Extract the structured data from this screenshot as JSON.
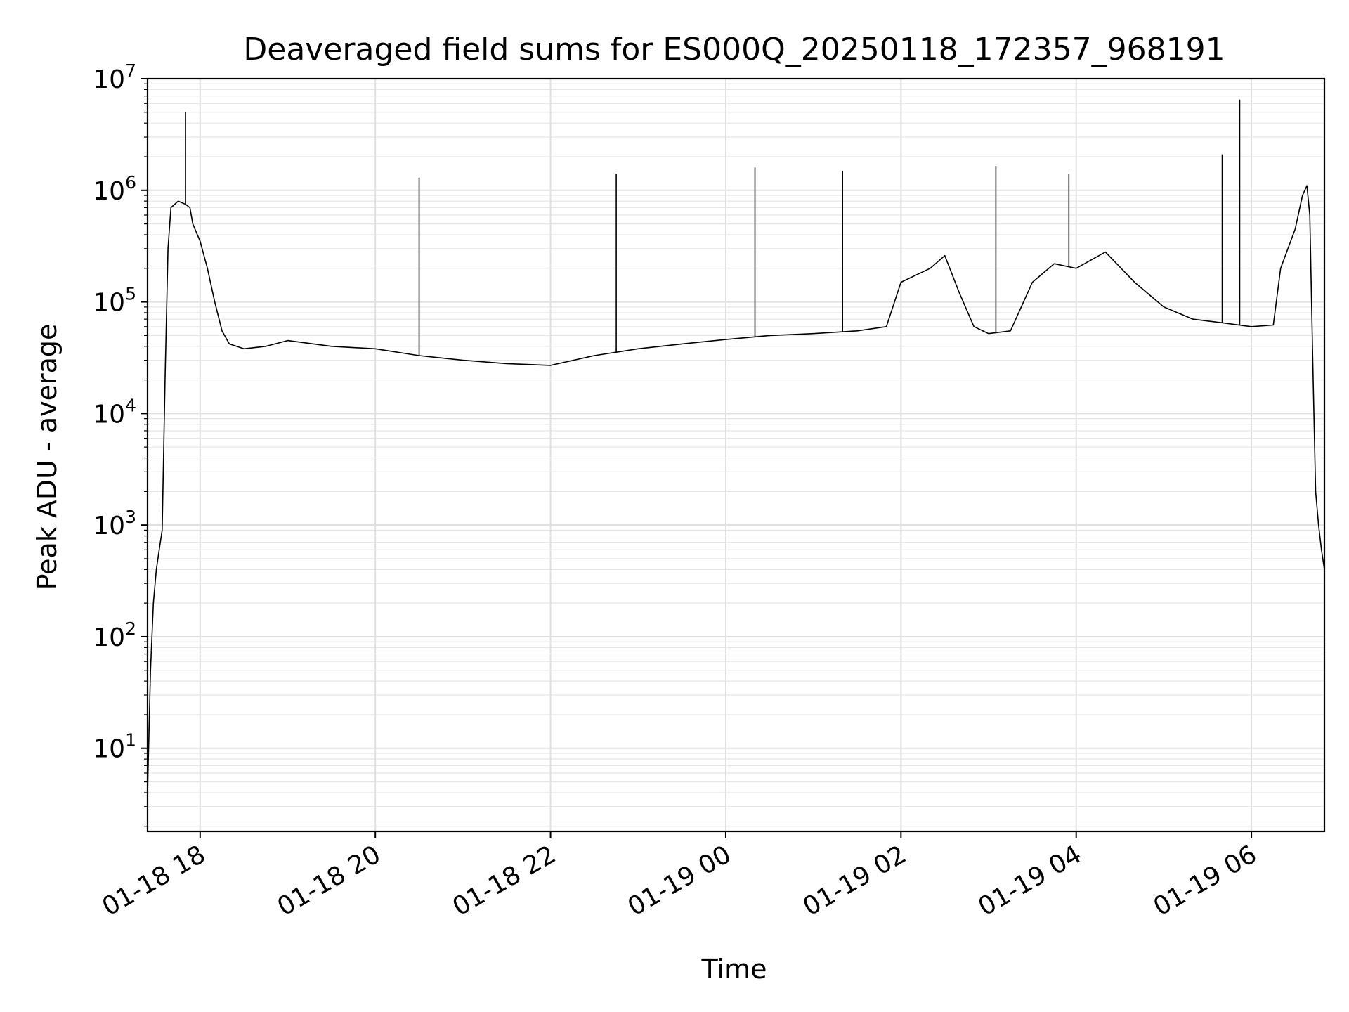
{
  "chart_data": {
    "type": "line",
    "title": "Deaveraged field sums for ES000Q_20250118_172357_968191",
    "xlabel": "Time",
    "ylabel": "Peak ADU - average",
    "yscale": "log",
    "ylim": [
      1.8,
      10000000
    ],
    "xlim": [
      "2025-01-18 17:24",
      "2025-01-19 06:50"
    ],
    "grid": true,
    "series_color": "#000000",
    "x_ticks": [
      {
        "t": "2025-01-18 18:00",
        "label": "01-18 18"
      },
      {
        "t": "2025-01-18 20:00",
        "label": "01-18 20"
      },
      {
        "t": "2025-01-18 22:00",
        "label": "01-18 22"
      },
      {
        "t": "2025-01-19 00:00",
        "label": "01-19 00"
      },
      {
        "t": "2025-01-19 02:00",
        "label": "01-19 02"
      },
      {
        "t": "2025-01-19 04:00",
        "label": "01-19 04"
      },
      {
        "t": "2025-01-19 06:00",
        "label": "01-19 06"
      }
    ],
    "y_ticks": [
      {
        "v": 10,
        "base": "10",
        "exp": "1"
      },
      {
        "v": 100,
        "base": "10",
        "exp": "2"
      },
      {
        "v": 1000,
        "base": "10",
        "exp": "3"
      },
      {
        "v": 10000,
        "base": "10",
        "exp": "4"
      },
      {
        "v": 100000,
        "base": "10",
        "exp": "5"
      },
      {
        "v": 1000000,
        "base": "10",
        "exp": "6"
      },
      {
        "v": 10000000,
        "base": "10",
        "exp": "7"
      }
    ],
    "series": [
      {
        "x": [
          "2025-01-18 17:24",
          "2025-01-18 17:26",
          "2025-01-18 17:28",
          "2025-01-18 17:30",
          "2025-01-18 17:32",
          "2025-01-18 17:34",
          "2025-01-18 17:36",
          "2025-01-18 17:38",
          "2025-01-18 17:40",
          "2025-01-18 17:45",
          "2025-01-18 17:50",
          "2025-01-18 17:53",
          "2025-01-18 17:55",
          "2025-01-18 18:00",
          "2025-01-18 18:05",
          "2025-01-18 18:10",
          "2025-01-18 18:15",
          "2025-01-18 18:20",
          "2025-01-18 18:30",
          "2025-01-18 18:45",
          "2025-01-18 19:00",
          "2025-01-18 19:30",
          "2025-01-18 20:00",
          "2025-01-18 20:30",
          "2025-01-18 21:00",
          "2025-01-18 21:30",
          "2025-01-18 22:00",
          "2025-01-18 22:30",
          "2025-01-18 23:00",
          "2025-01-18 23:30",
          "2025-01-19 00:00",
          "2025-01-19 00:30",
          "2025-01-19 01:00",
          "2025-01-19 01:30",
          "2025-01-19 01:50",
          "2025-01-19 02:00",
          "2025-01-19 02:20",
          "2025-01-19 02:30",
          "2025-01-19 02:40",
          "2025-01-19 02:50",
          "2025-01-19 03:00",
          "2025-01-19 03:15",
          "2025-01-19 03:30",
          "2025-01-19 03:45",
          "2025-01-19 04:00",
          "2025-01-19 04:20",
          "2025-01-19 04:40",
          "2025-01-19 05:00",
          "2025-01-19 05:20",
          "2025-01-19 05:40",
          "2025-01-19 06:00",
          "2025-01-19 06:15",
          "2025-01-19 06:20",
          "2025-01-19 06:30",
          "2025-01-19 06:35",
          "2025-01-19 06:38",
          "2025-01-19 06:40",
          "2025-01-19 06:42",
          "2025-01-19 06:44",
          "2025-01-19 06:46",
          "2025-01-19 06:48",
          "2025-01-19 06:50"
        ],
        "y": [
          4,
          50,
          200,
          400,
          600,
          900,
          20000,
          300000,
          700000,
          800000,
          750000,
          700000,
          500000,
          350000,
          200000,
          100000,
          55000,
          42000,
          38000,
          40000,
          45000,
          40000,
          38000,
          33000,
          30000,
          28000,
          27000,
          33000,
          38000,
          42000,
          46000,
          50000,
          52000,
          55000,
          60000,
          150000,
          200000,
          260000,
          120000,
          60000,
          52000,
          55000,
          150000,
          220000,
          200000,
          280000,
          150000,
          90000,
          70000,
          65000,
          60000,
          62000,
          200000,
          450000,
          900000,
          1100000,
          600000,
          30000,
          2000,
          1000,
          600,
          400
        ]
      }
    ],
    "spikes": [
      {
        "x": "2025-01-18 17:50",
        "y": 5000000
      },
      {
        "x": "2025-01-18 20:30",
        "y": 1300000
      },
      {
        "x": "2025-01-18 22:45",
        "y": 1400000
      },
      {
        "x": "2025-01-19 00:20",
        "y": 1600000
      },
      {
        "x": "2025-01-19 01:20",
        "y": 1500000
      },
      {
        "x": "2025-01-19 03:05",
        "y": 1650000
      },
      {
        "x": "2025-01-19 03:55",
        "y": 1400000
      },
      {
        "x": "2025-01-19 05:40",
        "y": 2100000
      },
      {
        "x": "2025-01-19 05:52",
        "y": 6500000
      }
    ]
  }
}
